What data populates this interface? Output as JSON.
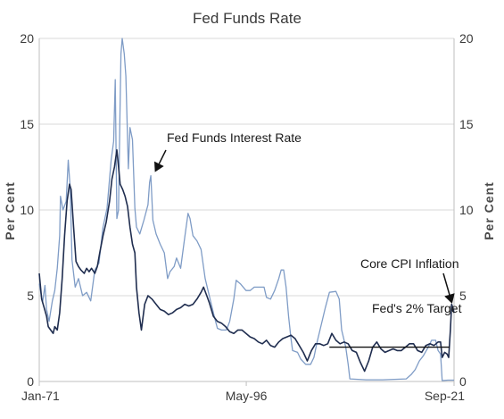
{
  "chart_data": {
    "type": "line",
    "title": "Fed Funds Rate",
    "ylabel_left": "Per Cent",
    "ylabel_right": "Per Cent",
    "xlabel": "",
    "x_tick_labels": [
      "Jan-71",
      "May-96",
      "Sep-21"
    ],
    "x_range": [
      "1971-01",
      "2021-09"
    ],
    "ylim": [
      0,
      20
    ],
    "y_ticks": [
      0,
      5,
      10,
      15,
      20
    ],
    "grid": true,
    "legend": "none",
    "series": [
      {
        "key": "fed_funds",
        "color": "#7f9cc6",
        "points": [
          [
            1971.0,
            5.7
          ],
          [
            1971.4,
            4.6
          ],
          [
            1971.7,
            5.6
          ],
          [
            1971.9,
            4.2
          ],
          [
            1972.2,
            3.5
          ],
          [
            1972.6,
            4.7
          ],
          [
            1972.9,
            5.3
          ],
          [
            1973.2,
            6.6
          ],
          [
            1973.5,
            8.5
          ],
          [
            1973.6,
            10.8
          ],
          [
            1973.9,
            10.0
          ],
          [
            1974.3,
            10.5
          ],
          [
            1974.55,
            12.9
          ],
          [
            1974.8,
            11.2
          ],
          [
            1975.0,
            7.1
          ],
          [
            1975.4,
            5.5
          ],
          [
            1975.8,
            6.0
          ],
          [
            1976.3,
            5.0
          ],
          [
            1976.8,
            5.2
          ],
          [
            1977.3,
            4.7
          ],
          [
            1977.8,
            6.5
          ],
          [
            1978.3,
            6.9
          ],
          [
            1978.8,
            9.0
          ],
          [
            1979.3,
            10.1
          ],
          [
            1979.8,
            12.9
          ],
          [
            1980.1,
            14.0
          ],
          [
            1980.3,
            17.6
          ],
          [
            1980.5,
            9.5
          ],
          [
            1980.7,
            10.0
          ],
          [
            1980.85,
            15.0
          ],
          [
            1981.0,
            19.1
          ],
          [
            1981.15,
            20.0
          ],
          [
            1981.4,
            19.1
          ],
          [
            1981.6,
            17.8
          ],
          [
            1981.9,
            12.4
          ],
          [
            1982.1,
            14.8
          ],
          [
            1982.4,
            14.1
          ],
          [
            1982.7,
            10.1
          ],
          [
            1982.9,
            9.0
          ],
          [
            1983.3,
            8.6
          ],
          [
            1983.8,
            9.4
          ],
          [
            1984.3,
            10.3
          ],
          [
            1984.5,
            11.6
          ],
          [
            1984.65,
            12.0
          ],
          [
            1984.9,
            9.4
          ],
          [
            1985.3,
            8.6
          ],
          [
            1985.8,
            8.0
          ],
          [
            1986.3,
            7.5
          ],
          [
            1986.7,
            6.0
          ],
          [
            1987.0,
            6.4
          ],
          [
            1987.5,
            6.7
          ],
          [
            1987.8,
            7.2
          ],
          [
            1988.3,
            6.6
          ],
          [
            1988.8,
            8.4
          ],
          [
            1989.2,
            9.8
          ],
          [
            1989.45,
            9.5
          ],
          [
            1989.8,
            8.5
          ],
          [
            1990.3,
            8.2
          ],
          [
            1990.8,
            7.7
          ],
          [
            1991.3,
            6.0
          ],
          [
            1991.8,
            5.0
          ],
          [
            1992.3,
            4.0
          ],
          [
            1992.8,
            3.1
          ],
          [
            1993.3,
            3.0
          ],
          [
            1993.9,
            3.0
          ],
          [
            1994.3,
            3.5
          ],
          [
            1994.8,
            4.8
          ],
          [
            1995.1,
            5.9
          ],
          [
            1995.6,
            5.7
          ],
          [
            1996.3,
            5.3
          ],
          [
            1996.8,
            5.3
          ],
          [
            1997.3,
            5.5
          ],
          [
            1997.8,
            5.5
          ],
          [
            1998.5,
            5.5
          ],
          [
            1998.8,
            4.9
          ],
          [
            1999.3,
            4.8
          ],
          [
            1999.8,
            5.3
          ],
          [
            2000.3,
            6.0
          ],
          [
            2000.6,
            6.5
          ],
          [
            2000.9,
            6.5
          ],
          [
            2001.2,
            5.5
          ],
          [
            2001.5,
            3.8
          ],
          [
            2001.8,
            2.5
          ],
          [
            2002.0,
            1.8
          ],
          [
            2002.6,
            1.7
          ],
          [
            2003.0,
            1.3
          ],
          [
            2003.6,
            1.0
          ],
          [
            2004.2,
            1.0
          ],
          [
            2004.6,
            1.4
          ],
          [
            2005.0,
            2.3
          ],
          [
            2005.5,
            3.3
          ],
          [
            2006.0,
            4.3
          ],
          [
            2006.5,
            5.2
          ],
          [
            2007.3,
            5.25
          ],
          [
            2007.7,
            4.8
          ],
          [
            2008.0,
            3.0
          ],
          [
            2008.5,
            2.0
          ],
          [
            2008.8,
            1.0
          ],
          [
            2009.0,
            0.15
          ],
          [
            2011.0,
            0.1
          ],
          [
            2013.0,
            0.1
          ],
          [
            2015.9,
            0.15
          ],
          [
            2016.5,
            0.4
          ],
          [
            2017.0,
            0.7
          ],
          [
            2017.5,
            1.2
          ],
          [
            2018.0,
            1.5
          ],
          [
            2018.6,
            2.0
          ],
          [
            2019.0,
            2.4
          ],
          [
            2019.5,
            2.4
          ],
          [
            2019.8,
            1.8
          ],
          [
            2020.1,
            1.6
          ],
          [
            2020.3,
            0.05
          ],
          [
            2021.0,
            0.08
          ],
          [
            2021.75,
            0.08
          ]
        ]
      },
      {
        "key": "core_cpi",
        "color": "#1f2d4f",
        "points": [
          [
            1971.0,
            6.3
          ],
          [
            1971.3,
            4.8
          ],
          [
            1971.6,
            4.3
          ],
          [
            1971.9,
            3.8
          ],
          [
            1972.1,
            3.2
          ],
          [
            1972.4,
            3.0
          ],
          [
            1972.7,
            2.8
          ],
          [
            1972.9,
            3.2
          ],
          [
            1973.2,
            3.0
          ],
          [
            1973.5,
            4.0
          ],
          [
            1973.8,
            6.0
          ],
          [
            1974.1,
            8.5
          ],
          [
            1974.4,
            10.5
          ],
          [
            1974.7,
            11.5
          ],
          [
            1974.9,
            11.2
          ],
          [
            1975.2,
            9.0
          ],
          [
            1975.5,
            7.0
          ],
          [
            1975.8,
            6.7
          ],
          [
            1976.1,
            6.5
          ],
          [
            1976.5,
            6.3
          ],
          [
            1976.8,
            6.6
          ],
          [
            1977.1,
            6.4
          ],
          [
            1977.4,
            6.6
          ],
          [
            1977.8,
            6.3
          ],
          [
            1978.1,
            6.7
          ],
          [
            1978.4,
            7.5
          ],
          [
            1978.8,
            8.5
          ],
          [
            1979.2,
            9.3
          ],
          [
            1979.6,
            10.5
          ],
          [
            1979.9,
            11.8
          ],
          [
            1980.2,
            12.5
          ],
          [
            1980.5,
            13.5
          ],
          [
            1980.7,
            12.5
          ],
          [
            1980.9,
            11.5
          ],
          [
            1981.2,
            11.2
          ],
          [
            1981.5,
            10.8
          ],
          [
            1981.8,
            10.2
          ],
          [
            1982.1,
            9.0
          ],
          [
            1982.4,
            8.0
          ],
          [
            1982.7,
            7.5
          ],
          [
            1982.9,
            5.5
          ],
          [
            1983.2,
            4.0
          ],
          [
            1983.5,
            3.0
          ],
          [
            1983.9,
            4.5
          ],
          [
            1984.3,
            5.0
          ],
          [
            1984.8,
            4.8
          ],
          [
            1985.3,
            4.5
          ],
          [
            1985.8,
            4.2
          ],
          [
            1986.3,
            4.1
          ],
          [
            1986.8,
            3.9
          ],
          [
            1987.3,
            4.0
          ],
          [
            1987.8,
            4.2
          ],
          [
            1988.3,
            4.3
          ],
          [
            1988.8,
            4.5
          ],
          [
            1989.3,
            4.4
          ],
          [
            1989.8,
            4.5
          ],
          [
            1990.3,
            4.8
          ],
          [
            1990.8,
            5.2
          ],
          [
            1991.1,
            5.5
          ],
          [
            1991.5,
            5.0
          ],
          [
            1991.8,
            4.6
          ],
          [
            1992.3,
            3.8
          ],
          [
            1992.8,
            3.5
          ],
          [
            1993.3,
            3.4
          ],
          [
            1993.8,
            3.2
          ],
          [
            1994.3,
            2.9
          ],
          [
            1994.8,
            2.8
          ],
          [
            1995.3,
            3.0
          ],
          [
            1995.8,
            3.0
          ],
          [
            1996.3,
            2.8
          ],
          [
            1996.8,
            2.6
          ],
          [
            1997.3,
            2.5
          ],
          [
            1997.8,
            2.3
          ],
          [
            1998.3,
            2.2
          ],
          [
            1998.8,
            2.4
          ],
          [
            1999.3,
            2.1
          ],
          [
            1999.8,
            2.0
          ],
          [
            2000.3,
            2.3
          ],
          [
            2000.8,
            2.5
          ],
          [
            2001.3,
            2.6
          ],
          [
            2001.8,
            2.7
          ],
          [
            2002.3,
            2.5
          ],
          [
            2002.8,
            2.1
          ],
          [
            2003.3,
            1.7
          ],
          [
            2003.8,
            1.2
          ],
          [
            2004.3,
            1.8
          ],
          [
            2004.8,
            2.2
          ],
          [
            2005.3,
            2.2
          ],
          [
            2005.8,
            2.1
          ],
          [
            2006.3,
            2.2
          ],
          [
            2006.8,
            2.8
          ],
          [
            2007.3,
            2.4
          ],
          [
            2007.8,
            2.2
          ],
          [
            2008.3,
            2.3
          ],
          [
            2008.8,
            2.2
          ],
          [
            2009.3,
            1.8
          ],
          [
            2009.8,
            1.7
          ],
          [
            2010.3,
            1.1
          ],
          [
            2010.8,
            0.6
          ],
          [
            2011.3,
            1.2
          ],
          [
            2011.8,
            2.0
          ],
          [
            2012.3,
            2.3
          ],
          [
            2012.8,
            1.9
          ],
          [
            2013.3,
            1.7
          ],
          [
            2013.8,
            1.8
          ],
          [
            2014.3,
            1.9
          ],
          [
            2014.8,
            1.8
          ],
          [
            2015.3,
            1.8
          ],
          [
            2015.8,
            2.0
          ],
          [
            2016.3,
            2.2
          ],
          [
            2016.8,
            2.2
          ],
          [
            2017.3,
            1.8
          ],
          [
            2017.8,
            1.7
          ],
          [
            2018.3,
            2.1
          ],
          [
            2018.8,
            2.2
          ],
          [
            2019.3,
            2.1
          ],
          [
            2019.8,
            2.3
          ],
          [
            2020.1,
            2.3
          ],
          [
            2020.3,
            1.4
          ],
          [
            2020.6,
            1.7
          ],
          [
            2020.9,
            1.6
          ],
          [
            2021.1,
            1.4
          ],
          [
            2021.3,
            3.0
          ],
          [
            2021.45,
            4.5
          ],
          [
            2021.6,
            4.3
          ],
          [
            2021.75,
            4.0
          ]
        ]
      }
    ],
    "reference_lines": [
      {
        "key": "target",
        "y": 2,
        "x_start": 2006.5,
        "x_end": 2021.2,
        "color": "#111111"
      }
    ],
    "annotations": [
      {
        "key": "fed_funds_label",
        "text": "Fed Funds Interest Rate"
      },
      {
        "key": "core_cpi_label",
        "text": "Core CPI Inflation"
      },
      {
        "key": "target_label",
        "text": "Fed's 2% Target"
      }
    ]
  }
}
